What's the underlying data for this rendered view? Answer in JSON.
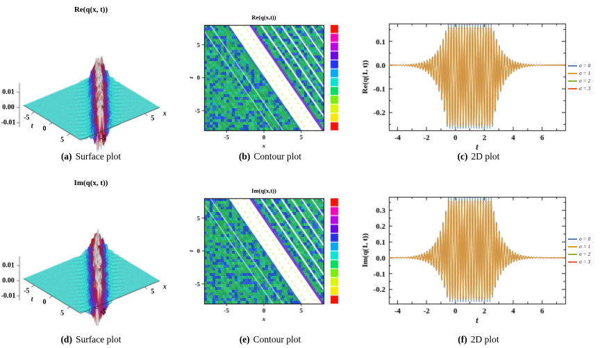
{
  "figure": {
    "panels": [
      {
        "id": "a",
        "caption_label": "(a)",
        "caption_text": "Surface plot"
      },
      {
        "id": "b",
        "caption_label": "(b)",
        "caption_text": "Contour plot"
      },
      {
        "id": "c",
        "caption_label": "(c)",
        "caption_text": "2D plot"
      },
      {
        "id": "d",
        "caption_label": "(d)",
        "caption_text": "Surface plot"
      },
      {
        "id": "e",
        "caption_label": "(e)",
        "caption_text": "Contour plot"
      },
      {
        "id": "f",
        "caption_label": "(f)",
        "caption_text": "2D plot"
      }
    ]
  },
  "chart_data": [
    {
      "panel": "a",
      "type": "surface",
      "title": "Re(q(x, t))",
      "xlabel": "x",
      "tlabel": "t",
      "x_range": [
        -8,
        8
      ],
      "t_range": [
        -8,
        8
      ],
      "z_range": [
        -0.015,
        0.015
      ],
      "x_ticks": [
        -5,
        5
      ],
      "t_ticks": [
        -5,
        0,
        5
      ],
      "z_ticks": [
        "0.01",
        "0.00",
        "-0.01"
      ],
      "colors": {
        "plane": "#3fe4dc",
        "spike_low": "#2f55e0",
        "spike_mid": "#8a14c8",
        "spike_high": "#ce1212",
        "spike_tip": "#ecd9d9"
      },
      "surface": {
        "description": "flat plane z≈0 with a localized rapidly-oscillating soliton ridge along x+0.69t≈1.6, amplitude ≈ ±0.013",
        "amplitude": 0.013,
        "band_center": 1.6,
        "band_sharpness": 1.1,
        "osc_freq": 4.2,
        "osc_type": "cos"
      }
    },
    {
      "panel": "b",
      "type": "heatmap",
      "title": "Re(q(x,t))",
      "xlabel": "x",
      "ylabel": "t",
      "x_range": [
        -8,
        8
      ],
      "y_range": [
        -8,
        8
      ],
      "x_ticks": [
        -5,
        0,
        5
      ],
      "y_ticks": [
        5,
        0,
        -5
      ],
      "band": {
        "slope_dt_dx": -1.45,
        "t_intercept": 2.2,
        "description": "wide white soliton band from upper-left to lower-right with purple upper edge, parallel thin white stripes in upper-left corner, mottled green/blue background"
      },
      "background_colors": [
        "#28b060",
        "#32c274",
        "#1ea35c",
        "#2050c8",
        "#2a62e0",
        "#15b8a0"
      ],
      "colorbar_colors": [
        "#ff1100",
        "#ff00bb",
        "#bb00ee",
        "#6a00f0",
        "#2233ff",
        "#00aaff",
        "#00e6d2",
        "#00e060",
        "#7af000",
        "#d6f800",
        "#fce800",
        "#ff1100"
      ]
    },
    {
      "panel": "c",
      "type": "line",
      "xlabel": "t",
      "ylabel": "Re(q(1, t))",
      "x_range": [
        -4.6,
        7.6
      ],
      "y_range": [
        -0.275,
        0.175
      ],
      "x_ticks": [
        -4,
        -2,
        0,
        2,
        4,
        6
      ],
      "y_ticks": [
        "0.1",
        "0.0",
        "-0.1",
        "-0.2"
      ],
      "series": [
        {
          "label": "σ = 0",
          "color": "#5e81b5",
          "amp_scale": 1.1
        },
        {
          "label": "σ = 1",
          "color": "#e19c24",
          "amp_scale": 1.0
        },
        {
          "label": "σ = 2",
          "color": "#8fb032",
          "amp_scale": 1.06
        },
        {
          "label": "σ = 3",
          "color": "#eb6235",
          "amp_scale": 1.03
        }
      ],
      "draw_order": [
        0,
        2,
        3,
        1
      ],
      "signal": {
        "description": "rapidly oscillating wave packet y = env(t)·(offset + A·cos(ω(t−c))); flat top |t−c|<1.55, exponential decay outside; max ≈ 0.15, min ≈ −0.25",
        "center": 1.0,
        "offset": -0.048,
        "amplitude": 0.2,
        "flat_half_width": 1.55,
        "decay_rate": 1.5,
        "omega": 34,
        "max": 0.15,
        "min": -0.25
      }
    },
    {
      "panel": "d",
      "type": "surface",
      "title": "Im(q(x, t))",
      "xlabel": "x",
      "tlabel": "t",
      "x_range": [
        -8,
        8
      ],
      "t_range": [
        -8,
        8
      ],
      "z_range": [
        -0.015,
        0.015
      ],
      "x_ticks": [
        -5,
        5
      ],
      "t_ticks": [
        -5,
        0,
        5
      ],
      "z_ticks": [
        "0.01",
        "0.00",
        "-0.01"
      ],
      "colors": {
        "plane": "#3fe4dc",
        "spike_low": "#2f55e0",
        "spike_mid": "#8a14c8",
        "spike_high": "#ce1212",
        "spike_tip": "#ecd9d9"
      },
      "surface": {
        "description": "flat plane z≈0 with a localized rapidly-oscillating soliton ridge along x+0.69t≈1.2, amplitude ≈ ±0.013",
        "amplitude": 0.013,
        "band_center": 1.2,
        "band_sharpness": 1.1,
        "osc_freq": 4.2,
        "osc_type": "sin"
      }
    },
    {
      "panel": "e",
      "type": "heatmap",
      "title": "Im(q(x,t))",
      "xlabel": "x",
      "ylabel": "t",
      "x_range": [
        -8,
        8
      ],
      "y_range": [
        -8,
        8
      ],
      "x_ticks": [
        -5,
        0,
        5
      ],
      "y_ticks": [
        5,
        0,
        -5
      ],
      "band": {
        "slope_dt_dx": -1.45,
        "t_intercept": 1.8,
        "description": "wide white soliton band from upper-left to lower-right with purple upper edge, parallel thin white stripes in upper-left corner, mottled green/blue background"
      },
      "background_colors": [
        "#28b060",
        "#32c274",
        "#1ea35c",
        "#2050c8",
        "#2a62e0",
        "#15b8a0"
      ],
      "colorbar_colors": [
        "#ff1100",
        "#ff00bb",
        "#bb00ee",
        "#6a00f0",
        "#2233ff",
        "#00aaff",
        "#00e6d2",
        "#00e060",
        "#7af000",
        "#d6f800",
        "#fce800",
        "#ff1100"
      ]
    },
    {
      "panel": "f",
      "type": "line",
      "xlabel": "t",
      "ylabel": "Im(q(1, t))",
      "x_range": [
        -4.6,
        7.6
      ],
      "y_range": [
        -0.29,
        0.385
      ],
      "x_ticks": [
        -4,
        -2,
        0,
        2,
        4,
        6
      ],
      "y_ticks": [
        "0.3",
        "0.2",
        "0.1",
        "0.0",
        "-0.1",
        "-0.2"
      ],
      "series": [
        {
          "label": "σ = 0",
          "color": "#5e81b5",
          "amp_scale": 1.1
        },
        {
          "label": "σ = 1",
          "color": "#e19c24",
          "amp_scale": 1.0
        },
        {
          "label": "σ = 2",
          "color": "#8fb032",
          "amp_scale": 1.06
        },
        {
          "label": "σ = 3",
          "color": "#eb6235",
          "amp_scale": 1.03
        }
      ],
      "draw_order": [
        0,
        2,
        3,
        1
      ],
      "signal": {
        "description": "rapidly oscillating wave packet y = env(t)·(offset + A·cos(ω(t−c))); flat top |t−c|<1.5, exponential decay outside; max ≈ 0.35, min ≈ −0.25",
        "center": 1.0,
        "offset": 0.05,
        "amplitude": 0.3,
        "flat_half_width": 1.5,
        "decay_rate": 1.5,
        "omega": 34,
        "max": 0.35,
        "min": -0.25
      }
    }
  ]
}
